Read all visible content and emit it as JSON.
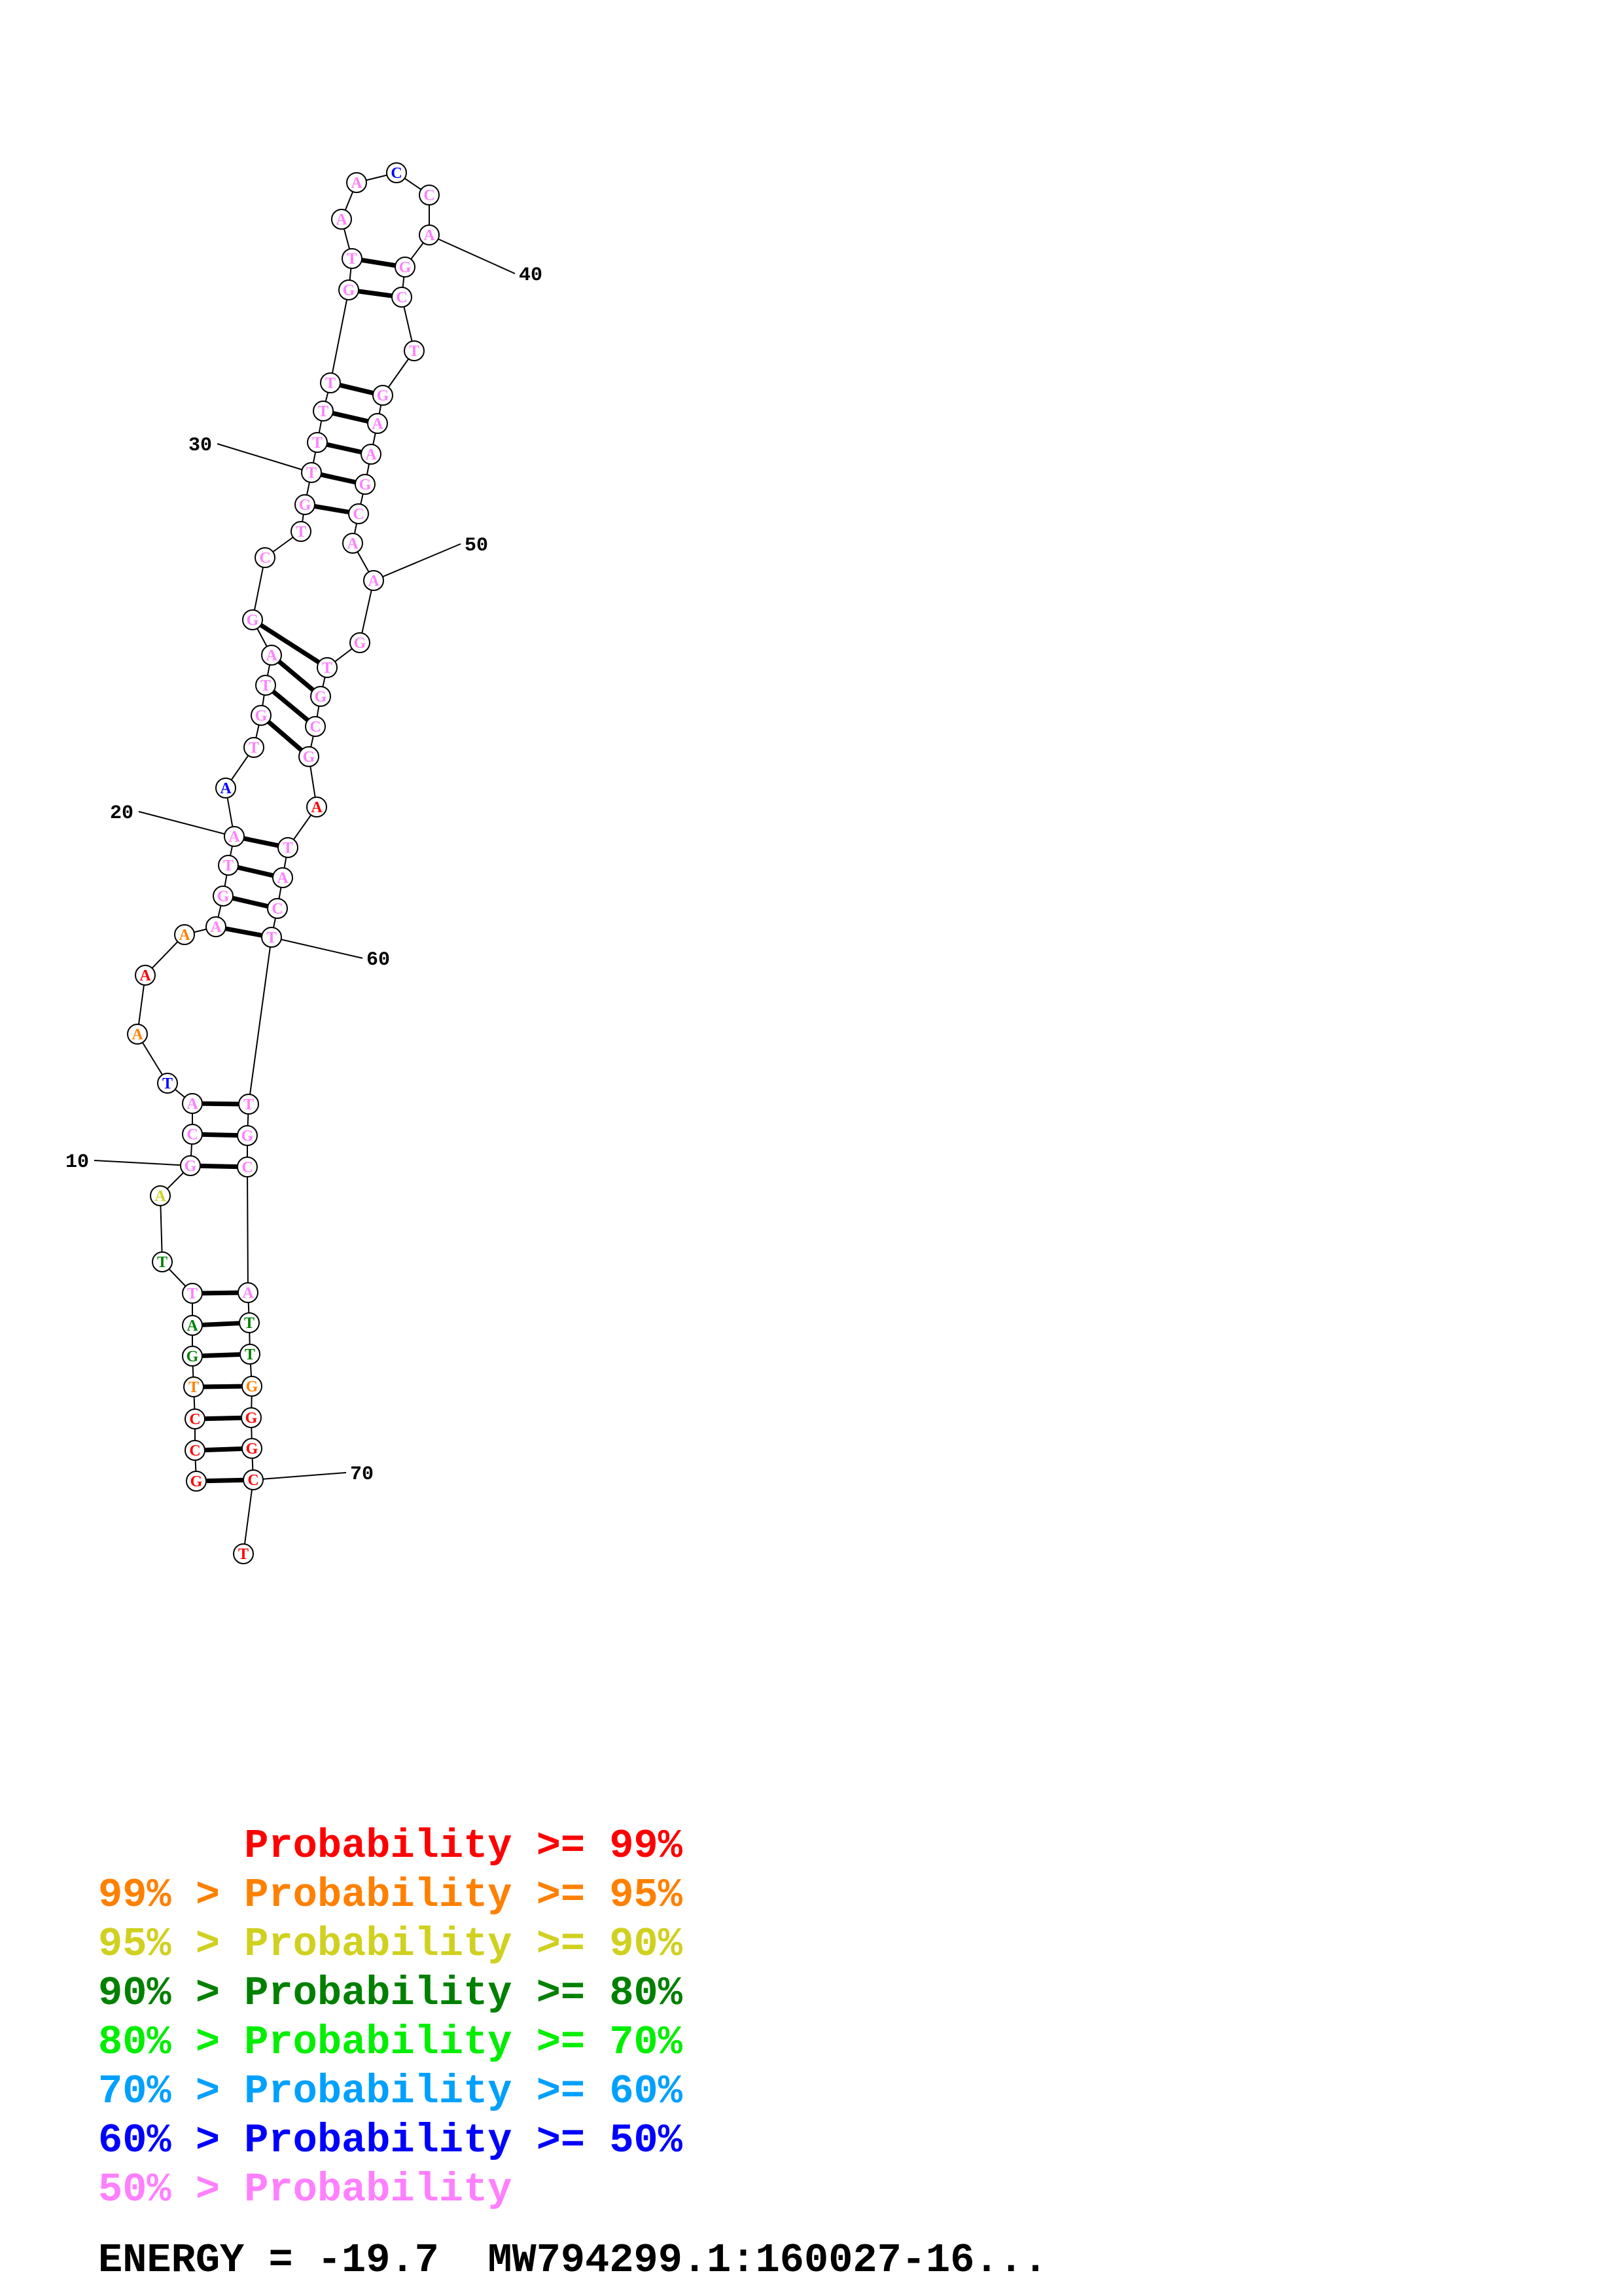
{
  "structure": {
    "nucleotides": [
      {
        "n": 1,
        "b": "G",
        "p": "ge99"
      },
      {
        "n": 2,
        "b": "C",
        "p": "ge99"
      },
      {
        "n": 3,
        "b": "C",
        "p": "ge99"
      },
      {
        "n": 4,
        "b": "T",
        "p": "ge95"
      },
      {
        "n": 5,
        "b": "G",
        "p": "ge80"
      },
      {
        "n": 6,
        "b": "A",
        "p": "ge80"
      },
      {
        "n": 7,
        "b": "T",
        "p": "lt50"
      },
      {
        "n": 8,
        "b": "T",
        "p": "ge80"
      },
      {
        "n": 9,
        "b": "A",
        "p": "ge90"
      },
      {
        "n": 10,
        "b": "G",
        "p": "lt50"
      },
      {
        "n": 11,
        "b": "C",
        "p": "lt50"
      },
      {
        "n": 12,
        "b": "A",
        "p": "lt50"
      },
      {
        "n": 13,
        "b": "T",
        "p": "ge50"
      },
      {
        "n": 14,
        "b": "A",
        "p": "ge95"
      },
      {
        "n": 15,
        "b": "A",
        "p": "ge99"
      },
      {
        "n": 16,
        "b": "A",
        "p": "ge95"
      },
      {
        "n": 17,
        "b": "A",
        "p": "lt50"
      },
      {
        "n": 18,
        "b": "G",
        "p": "lt50"
      },
      {
        "n": 19,
        "b": "T",
        "p": "lt50"
      },
      {
        "n": 20,
        "b": "A",
        "p": "lt50"
      },
      {
        "n": 21,
        "b": "A",
        "p": "ge50"
      },
      {
        "n": 22,
        "b": "T",
        "p": "lt50"
      },
      {
        "n": 23,
        "b": "G",
        "p": "lt50"
      },
      {
        "n": 24,
        "b": "T",
        "p": "lt50"
      },
      {
        "n": 25,
        "b": "A",
        "p": "lt50"
      },
      {
        "n": 26,
        "b": "G",
        "p": "lt50"
      },
      {
        "n": 27,
        "b": "C",
        "p": "lt50"
      },
      {
        "n": 28,
        "b": "T",
        "p": "lt50"
      },
      {
        "n": 29,
        "b": "G",
        "p": "lt50"
      },
      {
        "n": 30,
        "b": "T",
        "p": "lt50"
      },
      {
        "n": 31,
        "b": "T",
        "p": "lt50"
      },
      {
        "n": 32,
        "b": "T",
        "p": "lt50"
      },
      {
        "n": 33,
        "b": "T",
        "p": "lt50"
      },
      {
        "n": 34,
        "b": "G",
        "p": "lt50"
      },
      {
        "n": 35,
        "b": "T",
        "p": "lt50"
      },
      {
        "n": 36,
        "b": "A",
        "p": "lt50"
      },
      {
        "n": 37,
        "b": "A",
        "p": "lt50"
      },
      {
        "n": 38,
        "b": "C",
        "p": "ge50"
      },
      {
        "n": 39,
        "b": "C",
        "p": "lt50"
      },
      {
        "n": 40,
        "b": "A",
        "p": "lt50"
      },
      {
        "n": 41,
        "b": "G",
        "p": "lt50"
      },
      {
        "n": 42,
        "b": "C",
        "p": "lt50"
      },
      {
        "n": 43,
        "b": "T",
        "p": "lt50"
      },
      {
        "n": 44,
        "b": "G",
        "p": "lt50"
      },
      {
        "n": 45,
        "b": "A",
        "p": "lt50"
      },
      {
        "n": 46,
        "b": "A",
        "p": "lt50"
      },
      {
        "n": 47,
        "b": "G",
        "p": "lt50"
      },
      {
        "n": 48,
        "b": "C",
        "p": "lt50"
      },
      {
        "n": 49,
        "b": "A",
        "p": "lt50"
      },
      {
        "n": 50,
        "b": "A",
        "p": "lt50"
      },
      {
        "n": 51,
        "b": "G",
        "p": "lt50"
      },
      {
        "n": 52,
        "b": "T",
        "p": "lt50"
      },
      {
        "n": 53,
        "b": "G",
        "p": "lt50"
      },
      {
        "n": 54,
        "b": "C",
        "p": "lt50"
      },
      {
        "n": 55,
        "b": "G",
        "p": "lt50"
      },
      {
        "n": 56,
        "b": "A",
        "p": "ge99"
      },
      {
        "n": 57,
        "b": "T",
        "p": "lt50"
      },
      {
        "n": 58,
        "b": "A",
        "p": "lt50"
      },
      {
        "n": 59,
        "b": "C",
        "p": "lt50"
      },
      {
        "n": 60,
        "b": "T",
        "p": "lt50"
      },
      {
        "n": 61,
        "b": "T",
        "p": "lt50"
      },
      {
        "n": 62,
        "b": "G",
        "p": "lt50"
      },
      {
        "n": 63,
        "b": "C",
        "p": "lt50"
      },
      {
        "n": 64,
        "b": "A",
        "p": "lt50"
      },
      {
        "n": 65,
        "b": "T",
        "p": "ge80"
      },
      {
        "n": 66,
        "b": "T",
        "p": "ge80"
      },
      {
        "n": 67,
        "b": "G",
        "p": "ge95"
      },
      {
        "n": 68,
        "b": "G",
        "p": "ge99"
      },
      {
        "n": 69,
        "b": "G",
        "p": "ge99"
      },
      {
        "n": 70,
        "b": "C",
        "p": "ge99"
      },
      {
        "n": 71,
        "b": "T",
        "p": "ge99"
      }
    ],
    "pairs": [
      [
        1,
        70
      ],
      [
        2,
        69
      ],
      [
        3,
        68
      ],
      [
        4,
        67
      ],
      [
        5,
        66
      ],
      [
        6,
        65
      ],
      [
        7,
        64
      ],
      [
        10,
        63
      ],
      [
        11,
        62
      ],
      [
        12,
        61
      ],
      [
        17,
        60
      ],
      [
        18,
        59
      ],
      [
        19,
        58
      ],
      [
        20,
        57
      ],
      [
        23,
        55
      ],
      [
        24,
        54
      ],
      [
        25,
        53
      ],
      [
        26,
        52
      ],
      [
        29,
        48
      ],
      [
        30,
        47
      ],
      [
        31,
        46
      ],
      [
        32,
        45
      ],
      [
        33,
        44
      ],
      [
        34,
        42
      ],
      [
        35,
        41
      ]
    ],
    "position_labels": [
      "10",
      "20",
      "30",
      "40",
      "50",
      "60",
      "70"
    ]
  },
  "legend": [
    {
      "text": "      Probability >= 99%",
      "color": "#ff0000"
    },
    {
      "text": "99% > Probability >= 95%",
      "color": "#ff8000"
    },
    {
      "text": "95% > Probability >= 90%",
      "color": "#d0d020"
    },
    {
      "text": "90% > Probability >= 80%",
      "color": "#008000"
    },
    {
      "text": "80% > Probability >= 70%",
      "color": "#00ee00"
    },
    {
      "text": "70% > Probability >= 60%",
      "color": "#00a0ff"
    },
    {
      "text": "60% > Probability >= 50%",
      "color": "#0000ff"
    },
    {
      "text": "50% > Probability",
      "color": "#ff80ff"
    }
  ],
  "probability_colors": {
    "ge99": "#ff0000",
    "ge95": "#ff8000",
    "ge90": "#d0d020",
    "ge80": "#008000",
    "ge70": "#00ee00",
    "ge60": "#00a0ff",
    "ge50": "#0000ff",
    "lt50": "#ff80ff"
  },
  "footer": {
    "energy_label": "ENERGY = -19.7",
    "sequence_name": "MW794299.1:160027-16..."
  }
}
